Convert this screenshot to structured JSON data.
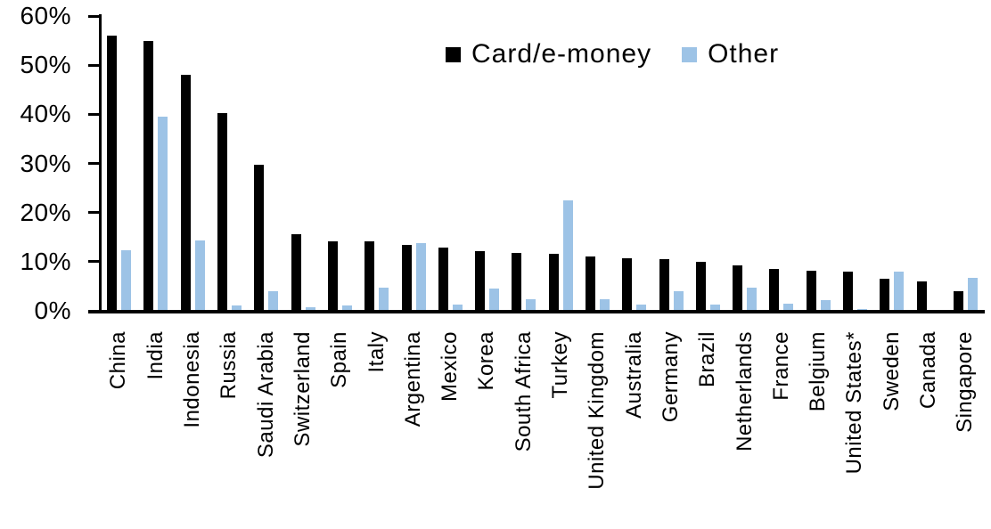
{
  "chart_data": {
    "type": "bar",
    "title": "",
    "xlabel": "",
    "ylabel": "",
    "ylim": [
      0,
      60
    ],
    "ytick_labels": [
      "60%",
      "50%",
      "40%",
      "30%",
      "20%",
      "10%",
      "0%"
    ],
    "grid": false,
    "legend_position": "top-center",
    "categories": [
      "China",
      "India",
      "Indonesia",
      "Russia",
      "Saudi Arabia",
      "Switzerland",
      "Spain",
      "Italy",
      "Argentina",
      "Mexico",
      "Korea",
      "South Africa",
      "Turkey",
      "United Kingdom",
      "Australia",
      "Germany",
      "Brazil",
      "Netherlands",
      "France",
      "Belgium",
      "United States*",
      "Sweden",
      "Canada",
      "Singapore"
    ],
    "series": [
      {
        "name": "Card/e-money",
        "color": "#000000",
        "values": [
          56,
          55,
          48,
          40.3,
          29.8,
          15.5,
          14.2,
          14.1,
          13.4,
          12.9,
          12.1,
          11.7,
          11.6,
          11,
          10.7,
          10.5,
          9.9,
          9.2,
          8.6,
          8.2,
          7.9,
          6.6,
          6,
          3.9
        ]
      },
      {
        "name": "Other",
        "color": "#9DC3E6",
        "values": [
          12.3,
          39.5,
          14.3,
          1,
          4,
          0.8,
          1,
          4.7,
          13.8,
          1.2,
          4.5,
          2.4,
          22.4,
          2.3,
          1.2,
          4,
          1.3,
          4.8,
          1.5,
          2.1,
          0.4,
          8,
          0,
          6.7
        ]
      }
    ]
  },
  "axes": {
    "y_unit": "%"
  }
}
